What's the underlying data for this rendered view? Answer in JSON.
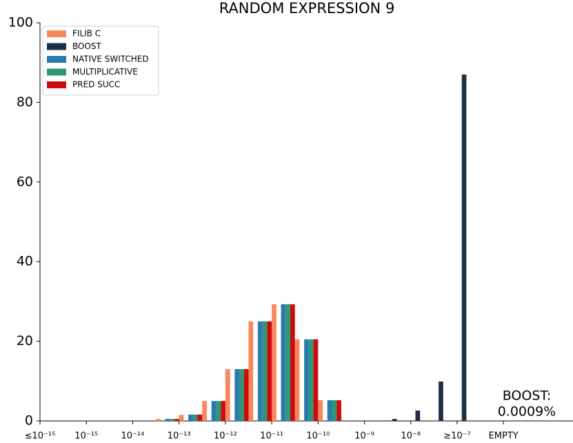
{
  "chart_data": {
    "type": "bar",
    "title": "RANDOM EXPRESSION 9",
    "x": [
      5,
      6,
      7,
      8,
      9,
      10,
      11,
      12,
      13,
      14,
      15,
      16,
      17,
      18
    ],
    "series": [
      {
        "name": "FILIB C",
        "color": "#f8875c",
        "values": [
          0.5,
          1.5,
          5,
          13,
          25,
          29.3,
          20.5,
          5.2,
          0,
          0,
          0,
          0,
          0,
          0
        ]
      },
      {
        "name": "BOOST",
        "color": "#1b3046",
        "values": [
          0,
          0,
          0,
          0,
          0,
          0,
          0,
          0,
          0,
          0,
          0.5,
          2.6,
          9.9,
          87
        ]
      },
      {
        "name": "NATIVE SWITCHED",
        "color": "#2a7aaf",
        "values": [
          0.5,
          1.6,
          5,
          13,
          25,
          29.3,
          20.5,
          5.2,
          0,
          0,
          0,
          0,
          0,
          0
        ]
      },
      {
        "name": "MULTIPLICATIVE",
        "color": "#2e9876",
        "values": [
          0.5,
          1.6,
          5,
          13,
          25,
          29.3,
          20.5,
          5.2,
          0,
          0,
          0,
          0,
          0,
          0
        ]
      },
      {
        "name": "PRED SUCC",
        "color": "#cc0b0b",
        "values": [
          0.5,
          1.6,
          5,
          13,
          25,
          29.3,
          20.5,
          5.2,
          0,
          0,
          0,
          0,
          0,
          0
        ]
      }
    ],
    "xlim": [
      0,
      23
    ],
    "xticks": [
      {
        "value": 0,
        "label": "≤10⁻¹⁵"
      },
      {
        "value": 2,
        "label": "10⁻¹⁵"
      },
      {
        "value": 4,
        "label": "10⁻¹⁴"
      },
      {
        "value": 6,
        "label": "10⁻¹³"
      },
      {
        "value": 8,
        "label": "10⁻¹²"
      },
      {
        "value": 10,
        "label": "10⁻¹¹"
      },
      {
        "value": 12,
        "label": "10⁻¹⁰"
      },
      {
        "value": 14,
        "label": "10⁻⁹"
      },
      {
        "value": 16,
        "label": "10⁻⁸"
      },
      {
        "value": 18,
        "label": "≥10⁻⁷"
      },
      {
        "value": 20,
        "label": "EMPTY"
      }
    ],
    "ylim": [
      0,
      100
    ],
    "yticks": [
      0,
      20,
      40,
      60,
      80,
      100
    ],
    "legend": "upper left",
    "annotation": [
      "BOOST:",
      "0.0009%"
    ]
  }
}
